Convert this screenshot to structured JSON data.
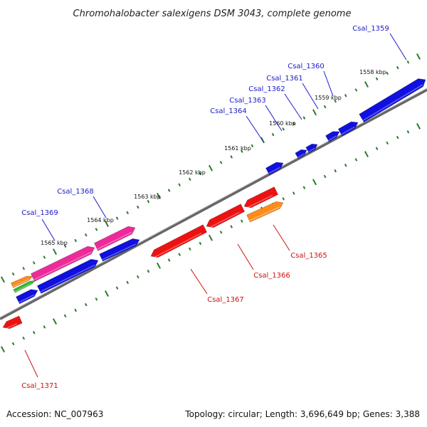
{
  "title": "Chromohalobacter salexigens DSM 3043, complete genome",
  "footer": {
    "accession": "Accession: NC_007963",
    "summary": "Topology: circular; Length: 3,696,649 bp; Genes: 3,388"
  },
  "colors": {
    "backbone": "#888888",
    "tick": "#2a7a2a",
    "forward_label": "#1a1acc",
    "reverse_label": "#cc1111",
    "blue": "#1010e0",
    "red": "#ee1111",
    "magenta": "#ee2a9a",
    "orange": "#ff8c1a",
    "green": "#33bb33"
  },
  "scale_labels": [
    "1558 kbp",
    "1559 kbp",
    "1560 kbp",
    "1561 kbp",
    "1562 kbp",
    "1563 kbp",
    "1564 kbp",
    "1565 kbp"
  ],
  "gene_labels": [
    {
      "text": "Csal_1359",
      "strand": "forward"
    },
    {
      "text": "Csal_1360",
      "strand": "forward"
    },
    {
      "text": "Csal_1361",
      "strand": "forward"
    },
    {
      "text": "Csal_1362",
      "strand": "forward"
    },
    {
      "text": "Csal_1363",
      "strand": "forward"
    },
    {
      "text": "Csal_1364",
      "strand": "forward"
    },
    {
      "text": "Csal_1368",
      "strand": "forward"
    },
    {
      "text": "Csal_1369",
      "strand": "forward"
    },
    {
      "text": "Csal_1365",
      "strand": "reverse"
    },
    {
      "text": "Csal_1366",
      "strand": "reverse"
    },
    {
      "text": "Csal_1367",
      "strand": "reverse"
    },
    {
      "text": "Csal_1371",
      "strand": "reverse"
    }
  ]
}
